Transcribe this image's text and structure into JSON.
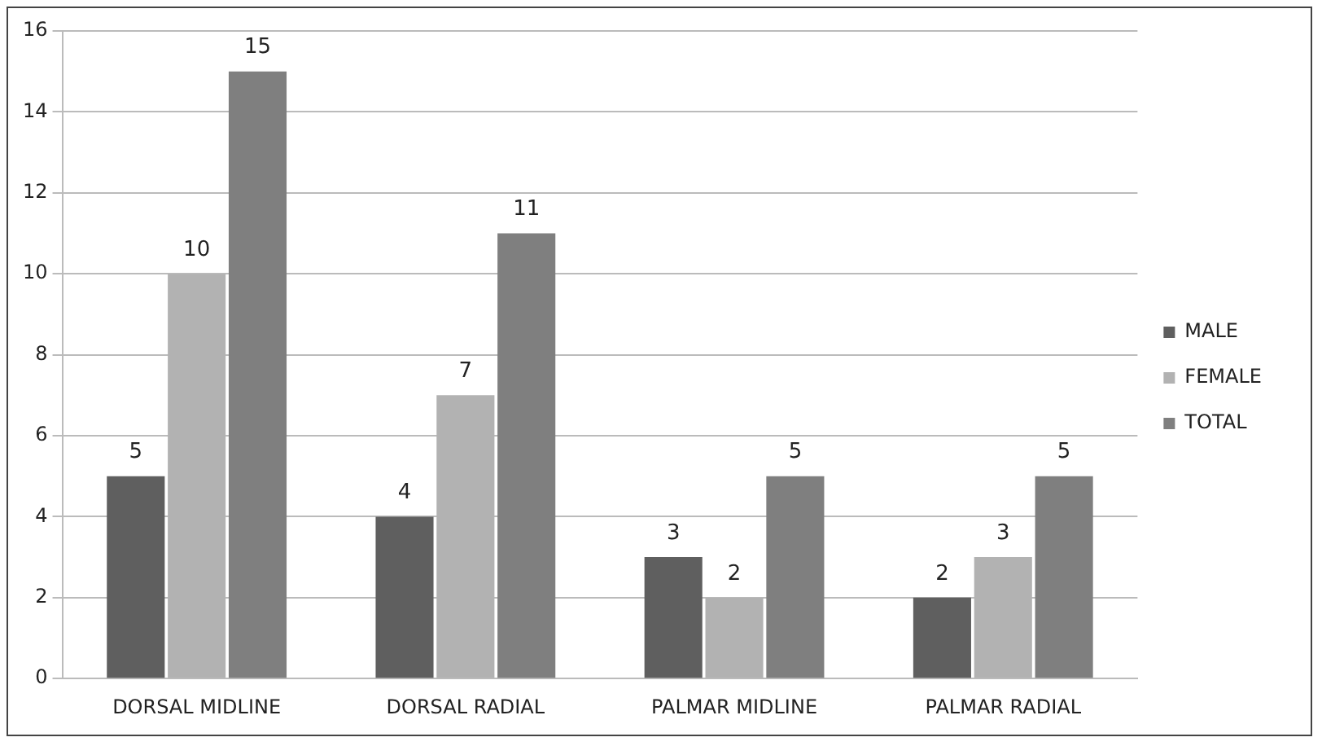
{
  "chart_data": {
    "type": "bar",
    "categories": [
      "DORSAL MIDLINE",
      "DORSAL RADIAL",
      "PALMAR MIDLINE",
      "PALMAR RADIAL"
    ],
    "series": [
      {
        "name": "MALE",
        "color": "#5f5f5f",
        "values": [
          5,
          4,
          3,
          2
        ]
      },
      {
        "name": "FEMALE",
        "color": "#b2b2b2",
        "values": [
          10,
          7,
          2,
          3
        ]
      },
      {
        "name": "TOTAL",
        "color": "#7f7f7f",
        "values": [
          15,
          11,
          5,
          5
        ]
      }
    ],
    "ylim": [
      0,
      16
    ],
    "yticks": [
      0,
      2,
      4,
      6,
      8,
      10,
      12,
      14,
      16
    ],
    "grid": "y",
    "legend": "right",
    "data_labels": true
  }
}
